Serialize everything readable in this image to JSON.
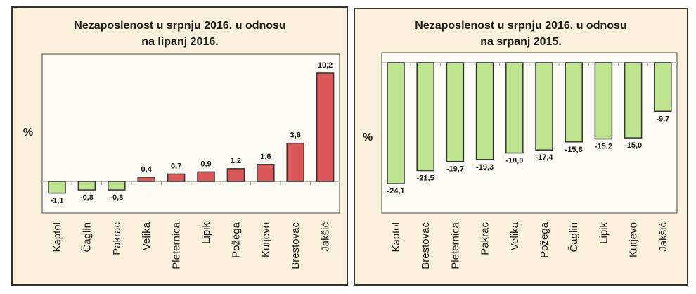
{
  "colors": {
    "panel_bg": "#fbf1da",
    "plot_bg": "#fdfaf5",
    "positive": "#dc5757",
    "negative": "#bde48f",
    "border": "#333333"
  },
  "chart_data": [
    {
      "type": "bar",
      "title_line1": "Nezaposlenost u srpnju 2016. u odnosu",
      "title_line2": "na lipanj 2016.",
      "ylabel": "%",
      "categories": [
        "Kaptol",
        "Čaglin",
        "Pakrac",
        "Velika",
        "Pleternica",
        "Lipik",
        "Požega",
        "Kutjevo",
        "Brestovac",
        "Jakšić"
      ],
      "values": [
        -1.1,
        -0.8,
        -0.8,
        0.4,
        0.7,
        0.9,
        1.2,
        1.6,
        3.6,
        10.2
      ],
      "data_labels": [
        "-1,1",
        "-0,8",
        "-0,8",
        "0,4",
        "0,7",
        "0,9",
        "1,2",
        "1,6",
        "3,6",
        "10,2"
      ],
      "grid": false
    },
    {
      "type": "bar",
      "title_line1": "Nezaposlenost u srpnju 2016. u odnosu",
      "title_line2": "na srpanj 2015.",
      "ylabel": "%",
      "categories": [
        "Kaptol",
        "Brestovac",
        "Pleternica",
        "Pakrac",
        "Velika",
        "Požega",
        "Čaglin",
        "Lipik",
        "Kutjevo",
        "Jakšić"
      ],
      "values": [
        -24.1,
        -21.5,
        -19.7,
        -19.3,
        -18.0,
        -17.4,
        -15.8,
        -15.2,
        -15.0,
        -9.7
      ],
      "data_labels": [
        "-24,1",
        "-21,5",
        "-19,7",
        "-19,3",
        "-18,0",
        "-17,4",
        "-15,8",
        "-15,2",
        "-15,0",
        "-9,7"
      ],
      "grid": false
    }
  ]
}
